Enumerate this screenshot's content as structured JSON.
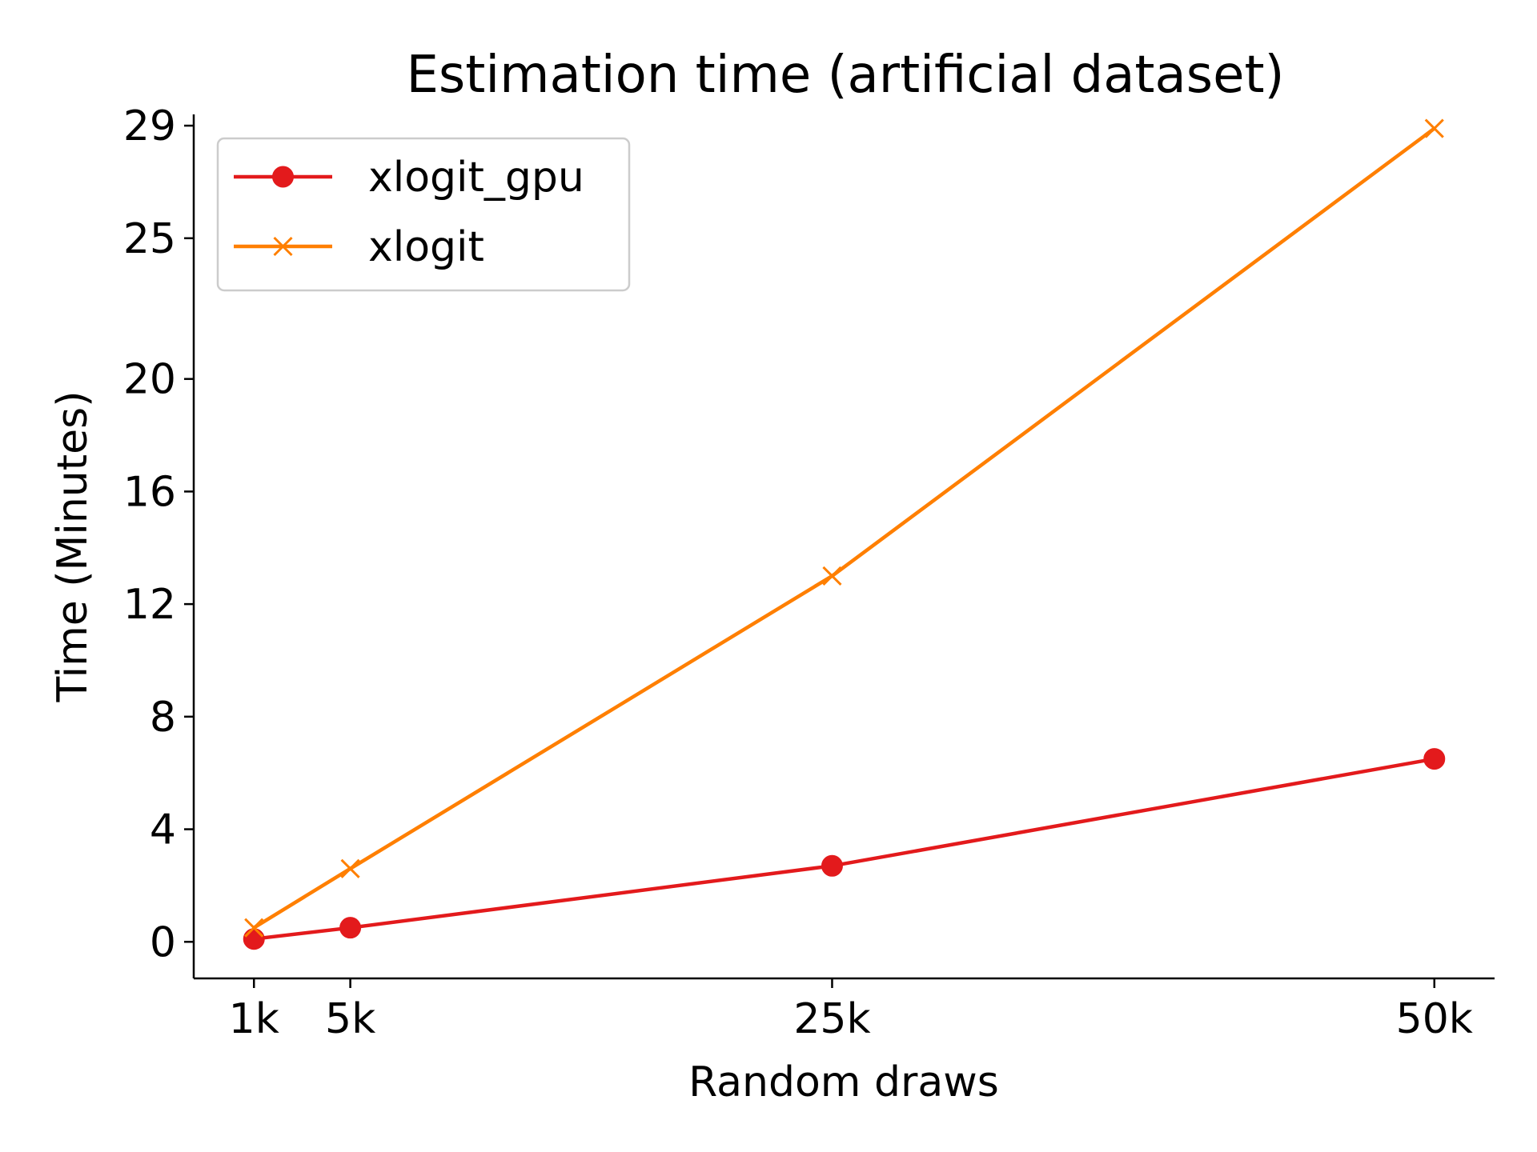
{
  "chart_data": {
    "type": "line",
    "title": "Estimation time (artificial dataset)",
    "xlabel": "Random draws",
    "ylabel": "Time (Minutes)",
    "x": [
      1000,
      5000,
      25000,
      50000
    ],
    "x_tick_values": [
      1000,
      5000,
      25000,
      50000
    ],
    "x_tick_labels": [
      "1k",
      "5k",
      "25k",
      "50k"
    ],
    "xlim": [
      -1500,
      52500
    ],
    "y_ticks": [
      0,
      4,
      8,
      12,
      16,
      20,
      25,
      29
    ],
    "y_tick_labels": [
      "0",
      "4",
      "8",
      "12",
      "16",
      "20",
      "25",
      "29"
    ],
    "ylim": [
      -1.3,
      29.4
    ],
    "grid": false,
    "legend_position": "top-left",
    "series": [
      {
        "name": "xlogit_gpu",
        "color": "#e31a1c",
        "marker": "circle",
        "values": [
          0.1,
          0.5,
          2.7,
          6.5
        ]
      },
      {
        "name": "xlogit",
        "color": "#ff7f00",
        "marker": "x",
        "values": [
          0.5,
          2.6,
          13.0,
          28.9
        ]
      }
    ]
  }
}
